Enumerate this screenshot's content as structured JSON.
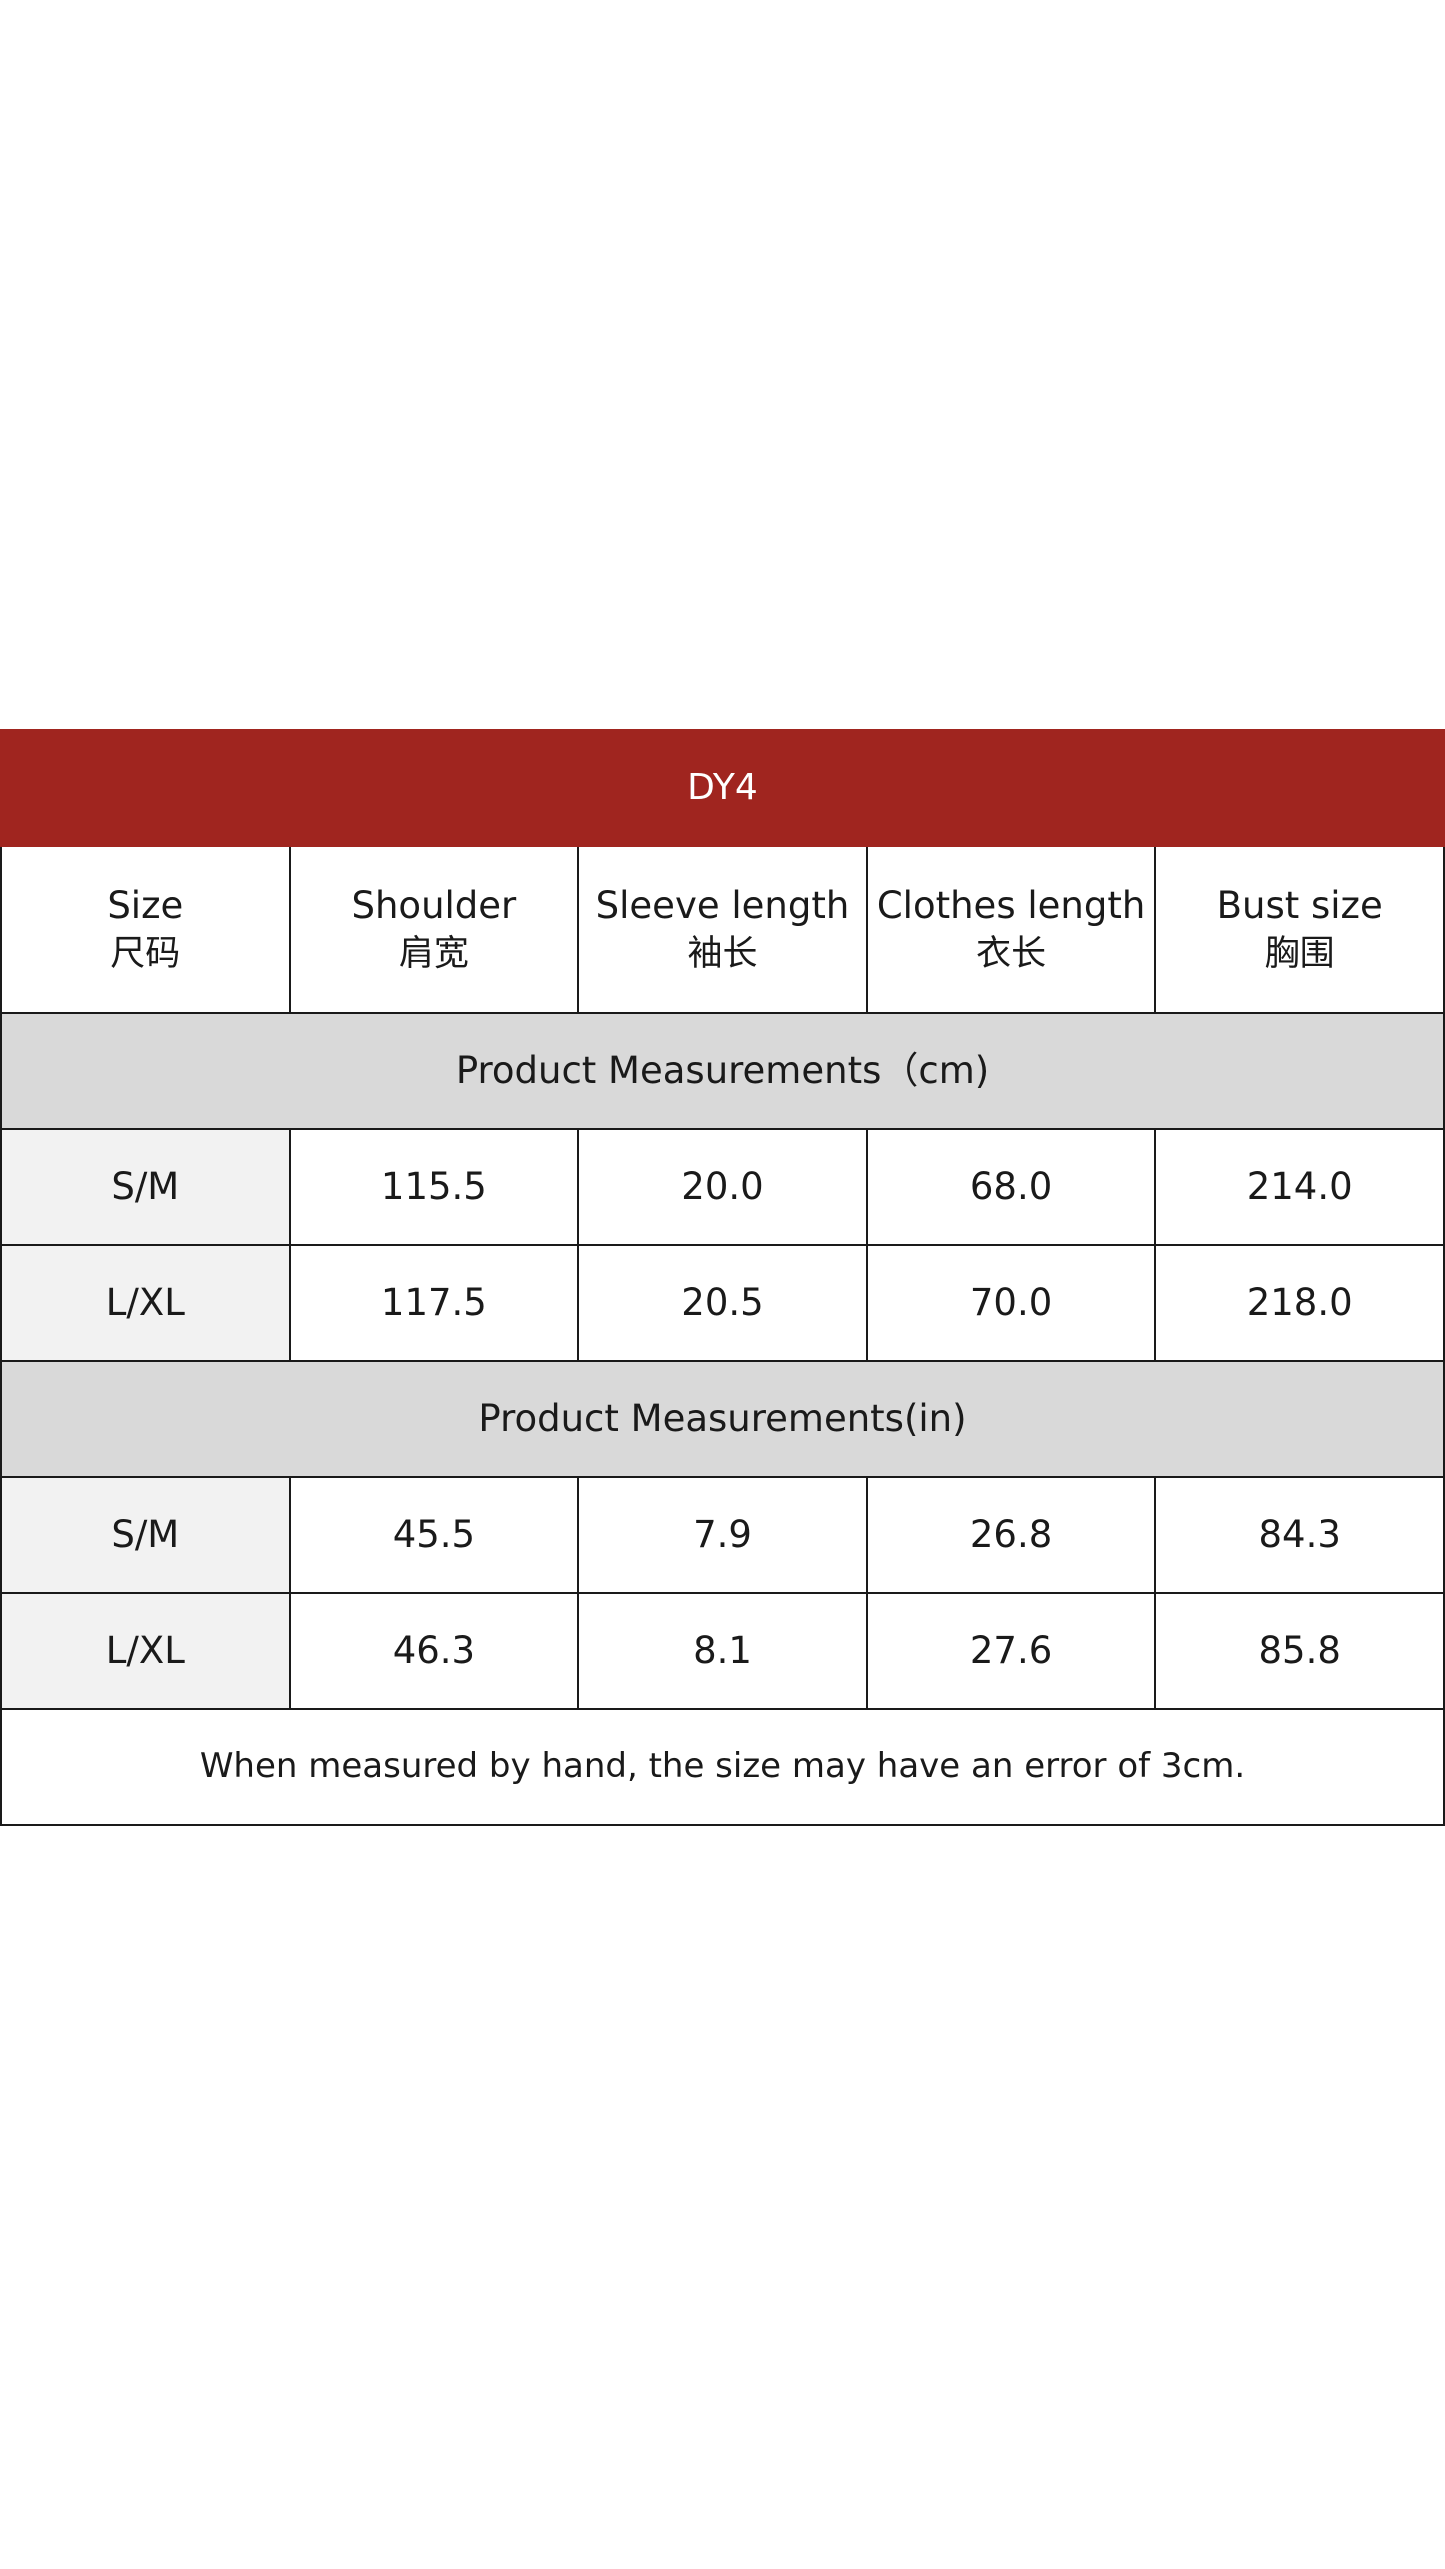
{
  "table": {
    "title": "DY4",
    "headers": [
      {
        "en": "Size",
        "zh": "尺码"
      },
      {
        "en": "Shoulder",
        "zh": "肩宽"
      },
      {
        "en": "Sleeve length",
        "zh": "袖长"
      },
      {
        "en": "Clothes length",
        "zh": "衣长"
      },
      {
        "en": "Bust size",
        "zh": "胸围"
      }
    ],
    "sections": [
      {
        "label": "Product Measurements（cm)",
        "rows": [
          [
            "S/M",
            "115.5",
            "20.0",
            "68.0",
            "214.0"
          ],
          [
            "L/XL",
            "117.5",
            "20.5",
            "70.0",
            "218.0"
          ]
        ]
      },
      {
        "label": "Product Measurements(in)",
        "rows": [
          [
            "S/M",
            "45.5",
            "7.9",
            "26.8",
            "84.3"
          ],
          [
            "L/XL",
            "46.3",
            "8.1",
            "27.6",
            "85.8"
          ]
        ]
      }
    ],
    "note": "When measured by hand, the size may have an error of 3cm."
  },
  "colors": {
    "title_bg": "#a0251f",
    "section_bg": "#d9d9d9",
    "size_cell_bg": "#f2f2f2"
  }
}
